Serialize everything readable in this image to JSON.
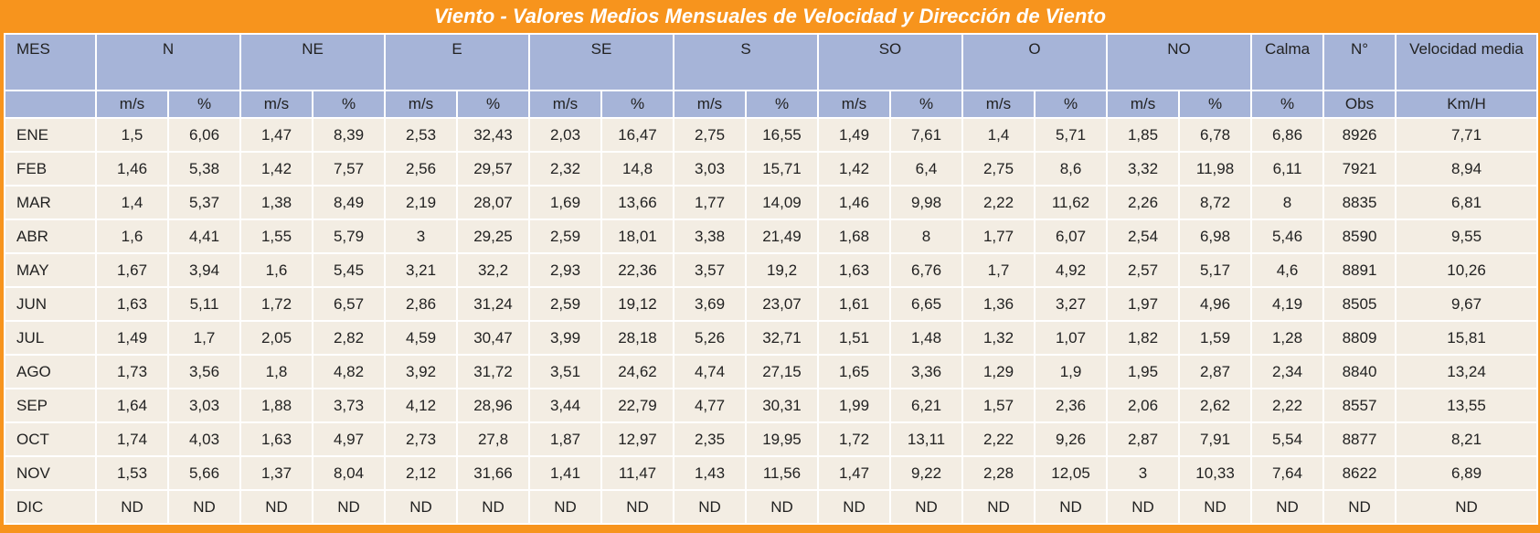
{
  "title": "Viento - Valores Medios Mensuales de Velocidad y Dirección de Viento",
  "header": {
    "groups": [
      "MES",
      "N",
      "NE",
      "E",
      "SE",
      "S",
      "SO",
      "O",
      "NO",
      "Calma",
      "N°",
      "Velocidad media"
    ],
    "units": [
      "m/s",
      "%",
      "m/s",
      "%",
      "m/s",
      "%",
      "m/s",
      "%",
      "m/s",
      "%",
      "m/s",
      "%",
      "m/s",
      "%",
      "m/s",
      "%",
      "%",
      "Obs",
      "Km/H"
    ]
  },
  "table": {
    "rows": [
      [
        "ENE",
        "1,5",
        "6,06",
        "1,47",
        "8,39",
        "2,53",
        "32,43",
        "2,03",
        "16,47",
        "2,75",
        "16,55",
        "1,49",
        "7,61",
        "1,4",
        "5,71",
        "1,85",
        "6,78",
        "6,86",
        "8926",
        "7,71"
      ],
      [
        "FEB",
        "1,46",
        "5,38",
        "1,42",
        "7,57",
        "2,56",
        "29,57",
        "2,32",
        "14,8",
        "3,03",
        "15,71",
        "1,42",
        "6,4",
        "2,75",
        "8,6",
        "3,32",
        "11,98",
        "6,11",
        "7921",
        "8,94"
      ],
      [
        "MAR",
        "1,4",
        "5,37",
        "1,38",
        "8,49",
        "2,19",
        "28,07",
        "1,69",
        "13,66",
        "1,77",
        "14,09",
        "1,46",
        "9,98",
        "2,22",
        "11,62",
        "2,26",
        "8,72",
        "8",
        "8835",
        "6,81"
      ],
      [
        "ABR",
        "1,6",
        "4,41",
        "1,55",
        "5,79",
        "3",
        "29,25",
        "2,59",
        "18,01",
        "3,38",
        "21,49",
        "1,68",
        "8",
        "1,77",
        "6,07",
        "2,54",
        "6,98",
        "5,46",
        "8590",
        "9,55"
      ],
      [
        "MAY",
        "1,67",
        "3,94",
        "1,6",
        "5,45",
        "3,21",
        "32,2",
        "2,93",
        "22,36",
        "3,57",
        "19,2",
        "1,63",
        "6,76",
        "1,7",
        "4,92",
        "2,57",
        "5,17",
        "4,6",
        "8891",
        "10,26"
      ],
      [
        "JUN",
        "1,63",
        "5,11",
        "1,72",
        "6,57",
        "2,86",
        "31,24",
        "2,59",
        "19,12",
        "3,69",
        "23,07",
        "1,61",
        "6,65",
        "1,36",
        "3,27",
        "1,97",
        "4,96",
        "4,19",
        "8505",
        "9,67"
      ],
      [
        "JUL",
        "1,49",
        "1,7",
        "2,05",
        "2,82",
        "4,59",
        "30,47",
        "3,99",
        "28,18",
        "5,26",
        "32,71",
        "1,51",
        "1,48",
        "1,32",
        "1,07",
        "1,82",
        "1,59",
        "1,28",
        "8809",
        "15,81"
      ],
      [
        "AGO",
        "1,73",
        "3,56",
        "1,8",
        "4,82",
        "3,92",
        "31,72",
        "3,51",
        "24,62",
        "4,74",
        "27,15",
        "1,65",
        "3,36",
        "1,29",
        "1,9",
        "1,95",
        "2,87",
        "2,34",
        "8840",
        "13,24"
      ],
      [
        "SEP",
        "1,64",
        "3,03",
        "1,88",
        "3,73",
        "4,12",
        "28,96",
        "3,44",
        "22,79",
        "4,77",
        "30,31",
        "1,99",
        "6,21",
        "1,57",
        "2,36",
        "2,06",
        "2,62",
        "2,22",
        "8557",
        "13,55"
      ],
      [
        "OCT",
        "1,74",
        "4,03",
        "1,63",
        "4,97",
        "2,73",
        "27,8",
        "1,87",
        "12,97",
        "2,35",
        "19,95",
        "1,72",
        "13,11",
        "2,22",
        "9,26",
        "2,87",
        "7,91",
        "5,54",
        "8877",
        "8,21"
      ],
      [
        "NOV",
        "1,53",
        "5,66",
        "1,37",
        "8,04",
        "2,12",
        "31,66",
        "1,41",
        "11,47",
        "1,43",
        "11,56",
        "1,47",
        "9,22",
        "2,28",
        "12,05",
        "3",
        "10,33",
        "7,64",
        "8622",
        "6,89"
      ],
      [
        "DIC",
        "ND",
        "ND",
        "ND",
        "ND",
        "ND",
        "ND",
        "ND",
        "ND",
        "ND",
        "ND",
        "ND",
        "ND",
        "ND",
        "ND",
        "ND",
        "ND",
        "ND",
        "ND",
        "ND"
      ]
    ]
  }
}
